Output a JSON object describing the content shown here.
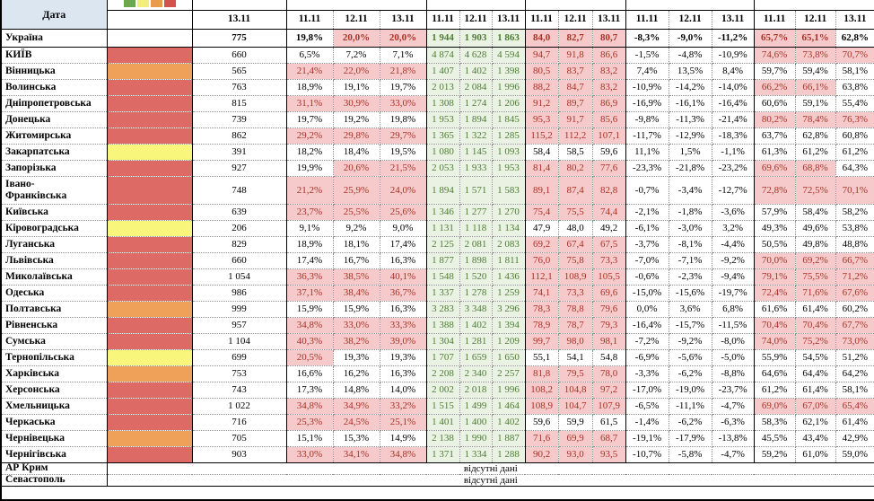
{
  "header": {
    "date_label": "Дата",
    "single_date": "13.11",
    "group_dates": [
      "11.11",
      "12.11",
      "13.11"
    ],
    "legend_colors": [
      "#6aa84f",
      "#f1ee7c",
      "#e99a4c",
      "#d2534c"
    ]
  },
  "colors": {
    "red": "#de6a66",
    "orange": "#f0a159",
    "yellow": "#f8f77c",
    "header_bg": "#dce6f1",
    "pink_bg": "#f6caca",
    "pink_text": "#a93226",
    "green_bg": "#e9f2e3",
    "green_text": "#4e7d33"
  },
  "thresholds": {
    "positivity": 20,
    "per100k": 65,
    "occupancy": 65
  },
  "missing_data_label": "відсутні дані",
  "rows": [
    {
      "name": "Україна",
      "indicator": null,
      "count": "775",
      "pct": [
        "19,8%",
        "20,0%",
        "20,0%"
      ],
      "abs": [
        "1 944",
        "1 903",
        "1 863"
      ],
      "rate": [
        "84,0",
        "82,7",
        "80,7"
      ],
      "chg": [
        "-8,3%",
        "-9,0%",
        "-11,2%"
      ],
      "occ": [
        "65,7%",
        "65,1%",
        "62,8%"
      ]
    },
    {
      "name": "КИЇВ",
      "indicator": "red",
      "count": "660",
      "pct": [
        "6,5%",
        "7,2%",
        "7,1%"
      ],
      "abs": [
        "4 874",
        "4 628",
        "4 594"
      ],
      "rate": [
        "94,7",
        "91,8",
        "86,6"
      ],
      "chg": [
        "-1,5%",
        "-4,8%",
        "-10,9%"
      ],
      "occ": [
        "74,6%",
        "73,8%",
        "70,7%"
      ]
    },
    {
      "name": "Вінницька",
      "indicator": "orange",
      "count": "565",
      "pct": [
        "21,4%",
        "22,0%",
        "21,8%"
      ],
      "abs": [
        "1 407",
        "1 402",
        "1 398"
      ],
      "rate": [
        "80,5",
        "83,7",
        "83,2"
      ],
      "chg": [
        "7,4%",
        "13,5%",
        "8,4%"
      ],
      "occ": [
        "59,7%",
        "59,4%",
        "58,1%"
      ]
    },
    {
      "name": "Волинська",
      "indicator": "red",
      "count": "763",
      "pct": [
        "18,9%",
        "19,1%",
        "19,7%"
      ],
      "abs": [
        "2 013",
        "2 084",
        "1 996"
      ],
      "rate": [
        "88,2",
        "84,7",
        "83,2"
      ],
      "chg": [
        "-10,9%",
        "-14,2%",
        "-14,0%"
      ],
      "occ": [
        "66,2%",
        "66,1%",
        "63,8%"
      ]
    },
    {
      "name": "Дніпропетровська",
      "indicator": "red",
      "count": "815",
      "pct": [
        "31,1%",
        "30,9%",
        "33,0%"
      ],
      "abs": [
        "1 308",
        "1 274",
        "1 206"
      ],
      "rate": [
        "91,2",
        "89,7",
        "86,9"
      ],
      "chg": [
        "-16,9%",
        "-16,1%",
        "-16,4%"
      ],
      "occ": [
        "60,6%",
        "59,1%",
        "55,4%"
      ]
    },
    {
      "name": "Донецька",
      "indicator": "red",
      "count": "739",
      "pct": [
        "19,7%",
        "19,2%",
        "19,8%"
      ],
      "abs": [
        "1 953",
        "1 894",
        "1 845"
      ],
      "rate": [
        "95,3",
        "91,7",
        "85,6"
      ],
      "chg": [
        "-9,8%",
        "-11,3%",
        "-21,4%"
      ],
      "occ": [
        "80,2%",
        "78,4%",
        "76,3%"
      ]
    },
    {
      "name": "Житомирська",
      "indicator": "red",
      "count": "862",
      "pct": [
        "29,2%",
        "29,8%",
        "29,7%"
      ],
      "abs": [
        "1 365",
        "1 322",
        "1 285"
      ],
      "rate": [
        "115,2",
        "112,2",
        "107,1"
      ],
      "chg": [
        "-11,7%",
        "-12,9%",
        "-18,3%"
      ],
      "occ": [
        "63,7%",
        "62,8%",
        "60,8%"
      ]
    },
    {
      "name": "Закарпатська",
      "indicator": "yellow",
      "count": "391",
      "pct": [
        "18,2%",
        "18,4%",
        "19,5%"
      ],
      "abs": [
        "1 080",
        "1 145",
        "1 093"
      ],
      "rate": [
        "58,4",
        "58,5",
        "59,6"
      ],
      "chg": [
        "11,1%",
        "1,5%",
        "-1,1%"
      ],
      "occ": [
        "61,3%",
        "61,2%",
        "61,2%"
      ]
    },
    {
      "name": "Запорізька",
      "indicator": "red",
      "count": "927",
      "pct": [
        "19,9%",
        "20,6%",
        "21,5%"
      ],
      "abs": [
        "2 053",
        "1 933",
        "1 953"
      ],
      "rate": [
        "81,4",
        "80,2",
        "77,6"
      ],
      "chg": [
        "-23,3%",
        "-21,8%",
        "-23,2%"
      ],
      "occ": [
        "69,6%",
        "68,8%",
        "64,3%"
      ]
    },
    {
      "name": "Івано-Франківська",
      "indicator": "red",
      "wrap": true,
      "count": "748",
      "pct": [
        "21,2%",
        "25,9%",
        "24,0%"
      ],
      "abs": [
        "1 894",
        "1 571",
        "1 583"
      ],
      "rate": [
        "89,1",
        "87,4",
        "82,8"
      ],
      "chg": [
        "-0,7%",
        "-3,4%",
        "-12,7%"
      ],
      "occ": [
        "72,8%",
        "72,5%",
        "70,1%"
      ]
    },
    {
      "name": "Київська",
      "indicator": "red",
      "count": "639",
      "pct": [
        "23,7%",
        "25,5%",
        "25,6%"
      ],
      "abs": [
        "1 346",
        "1 277",
        "1 270"
      ],
      "rate": [
        "75,4",
        "75,5",
        "74,4"
      ],
      "chg": [
        "-2,1%",
        "-1,8%",
        "-3,6%"
      ],
      "occ": [
        "57,9%",
        "58,4%",
        "58,2%"
      ]
    },
    {
      "name": "Кіровоградська",
      "indicator": "yellow",
      "count": "206",
      "pct": [
        "9,1%",
        "9,2%",
        "9,0%"
      ],
      "abs": [
        "1 131",
        "1 118",
        "1 134"
      ],
      "rate": [
        "47,9",
        "48,0",
        "49,2"
      ],
      "chg": [
        "-6,1%",
        "-3,0%",
        "3,2%"
      ],
      "occ": [
        "49,3%",
        "49,6%",
        "53,8%"
      ]
    },
    {
      "name": "Луганська",
      "indicator": "red",
      "count": "829",
      "pct": [
        "18,9%",
        "18,1%",
        "17,4%"
      ],
      "abs": [
        "2 125",
        "2 081",
        "2 083"
      ],
      "rate": [
        "69,2",
        "67,4",
        "67,5"
      ],
      "chg": [
        "-3,7%",
        "-8,1%",
        "-4,4%"
      ],
      "occ": [
        "50,5%",
        "49,8%",
        "48,8%"
      ]
    },
    {
      "name": "Львівська",
      "indicator": "red",
      "count": "660",
      "pct": [
        "17,4%",
        "16,7%",
        "16,3%"
      ],
      "abs": [
        "1 877",
        "1 898",
        "1 811"
      ],
      "rate": [
        "76,0",
        "75,8",
        "73,3"
      ],
      "chg": [
        "-7,0%",
        "-7,1%",
        "-9,2%"
      ],
      "occ": [
        "70,0%",
        "69,2%",
        "66,7%"
      ]
    },
    {
      "name": "Миколаївська",
      "indicator": "red",
      "count": "1 054",
      "pct": [
        "36,3%",
        "38,5%",
        "40,1%"
      ],
      "abs": [
        "1 548",
        "1 520",
        "1 436"
      ],
      "rate": [
        "112,1",
        "108,9",
        "105,5"
      ],
      "chg": [
        "-0,6%",
        "-2,3%",
        "-9,4%"
      ],
      "occ": [
        "79,1%",
        "75,5%",
        "71,2%"
      ]
    },
    {
      "name": "Одеська",
      "indicator": "red",
      "count": "986",
      "pct": [
        "37,1%",
        "38,4%",
        "36,7%"
      ],
      "abs": [
        "1 337",
        "1 278",
        "1 259"
      ],
      "rate": [
        "74,1",
        "73,3",
        "69,6"
      ],
      "chg": [
        "-15,0%",
        "-15,6%",
        "-19,7%"
      ],
      "occ": [
        "72,4%",
        "71,6%",
        "67,6%"
      ]
    },
    {
      "name": "Полтавська",
      "indicator": "orange",
      "count": "999",
      "pct": [
        "15,9%",
        "15,9%",
        "16,3%"
      ],
      "abs": [
        "3 283",
        "3 348",
        "3 296"
      ],
      "rate": [
        "78,3",
        "78,8",
        "79,6"
      ],
      "chg": [
        "0,0%",
        "3,6%",
        "6,8%"
      ],
      "occ": [
        "61,6%",
        "61,4%",
        "60,2%"
      ]
    },
    {
      "name": "Рівненська",
      "indicator": "red",
      "count": "957",
      "pct": [
        "34,8%",
        "33,0%",
        "33,3%"
      ],
      "abs": [
        "1 388",
        "1 402",
        "1 394"
      ],
      "rate": [
        "78,9",
        "78,7",
        "79,3"
      ],
      "chg": [
        "-16,4%",
        "-15,7%",
        "-11,5%"
      ],
      "occ": [
        "70,4%",
        "70,4%",
        "67,7%"
      ]
    },
    {
      "name": "Сумська",
      "indicator": "red",
      "count": "1 104",
      "pct": [
        "40,3%",
        "38,2%",
        "39,0%"
      ],
      "abs": [
        "1 304",
        "1 281",
        "1 209"
      ],
      "rate": [
        "99,7",
        "98,0",
        "98,1"
      ],
      "chg": [
        "-7,2%",
        "-9,2%",
        "-8,0%"
      ],
      "occ": [
        "74,0%",
        "75,2%",
        "73,0%"
      ]
    },
    {
      "name": "Тернопільська",
      "indicator": "yellow",
      "count": "699",
      "pct": [
        "20,5%",
        "19,3%",
        "19,3%"
      ],
      "abs": [
        "1 707",
        "1 659",
        "1 650"
      ],
      "rate": [
        "55,1",
        "54,1",
        "54,8"
      ],
      "chg": [
        "-6,9%",
        "-5,6%",
        "-5,0%"
      ],
      "occ": [
        "55,9%",
        "54,5%",
        "51,2%"
      ]
    },
    {
      "name": "Харківська",
      "indicator": "orange",
      "count": "753",
      "pct": [
        "16,6%",
        "16,2%",
        "16,3%"
      ],
      "abs": [
        "2 208",
        "2 340",
        "2 257"
      ],
      "rate": [
        "81,8",
        "79,5",
        "78,0"
      ],
      "chg": [
        "-3,3%",
        "-6,2%",
        "-8,8%"
      ],
      "occ": [
        "64,6%",
        "64,4%",
        "64,2%"
      ]
    },
    {
      "name": "Херсонська",
      "indicator": "red",
      "count": "743",
      "pct": [
        "17,3%",
        "14,8%",
        "14,0%"
      ],
      "abs": [
        "2 002",
        "2 018",
        "1 996"
      ],
      "rate": [
        "108,2",
        "104,8",
        "97,2"
      ],
      "chg": [
        "-17,0%",
        "-19,0%",
        "-23,7%"
      ],
      "occ": [
        "61,2%",
        "61,4%",
        "58,1%"
      ]
    },
    {
      "name": "Хмельницька",
      "indicator": "red",
      "count": "1 022",
      "pct": [
        "34,8%",
        "34,9%",
        "33,2%"
      ],
      "abs": [
        "1 515",
        "1 499",
        "1 464"
      ],
      "rate": [
        "108,9",
        "104,7",
        "107,9"
      ],
      "chg": [
        "-6,5%",
        "-11,1%",
        "-4,7%"
      ],
      "occ": [
        "69,0%",
        "67,0%",
        "65,4%"
      ]
    },
    {
      "name": "Черкаська",
      "indicator": "red",
      "count": "716",
      "pct": [
        "25,3%",
        "24,5%",
        "25,1%"
      ],
      "abs": [
        "1 401",
        "1 400",
        "1 402"
      ],
      "rate": [
        "59,6",
        "59,9",
        "61,5"
      ],
      "chg": [
        "-1,4%",
        "-6,2%",
        "-6,3%"
      ],
      "occ": [
        "58,3%",
        "62,1%",
        "61,4%"
      ]
    },
    {
      "name": "Чернівецька",
      "indicator": "orange",
      "count": "705",
      "pct": [
        "15,1%",
        "15,3%",
        "14,9%"
      ],
      "abs": [
        "2 138",
        "1 990",
        "1 887"
      ],
      "rate": [
        "71,6",
        "69,9",
        "68,7"
      ],
      "chg": [
        "-19,1%",
        "-17,9%",
        "-13,8%"
      ],
      "occ": [
        "45,5%",
        "43,4%",
        "42,9%"
      ]
    },
    {
      "name": "Чернігівська",
      "indicator": "red",
      "count": "903",
      "pct": [
        "33,0%",
        "34,1%",
        "34,8%"
      ],
      "abs": [
        "1 371",
        "1 334",
        "1 288"
      ],
      "rate": [
        "90,2",
        "93,0",
        "93,5"
      ],
      "chg": [
        "-10,7%",
        "-5,8%",
        "-4,7%"
      ],
      "occ": [
        "59,2%",
        "61,0%",
        "59,0%"
      ]
    }
  ],
  "no_data_rows": [
    {
      "name": "АР Крим"
    },
    {
      "name": "Севастополь"
    }
  ]
}
